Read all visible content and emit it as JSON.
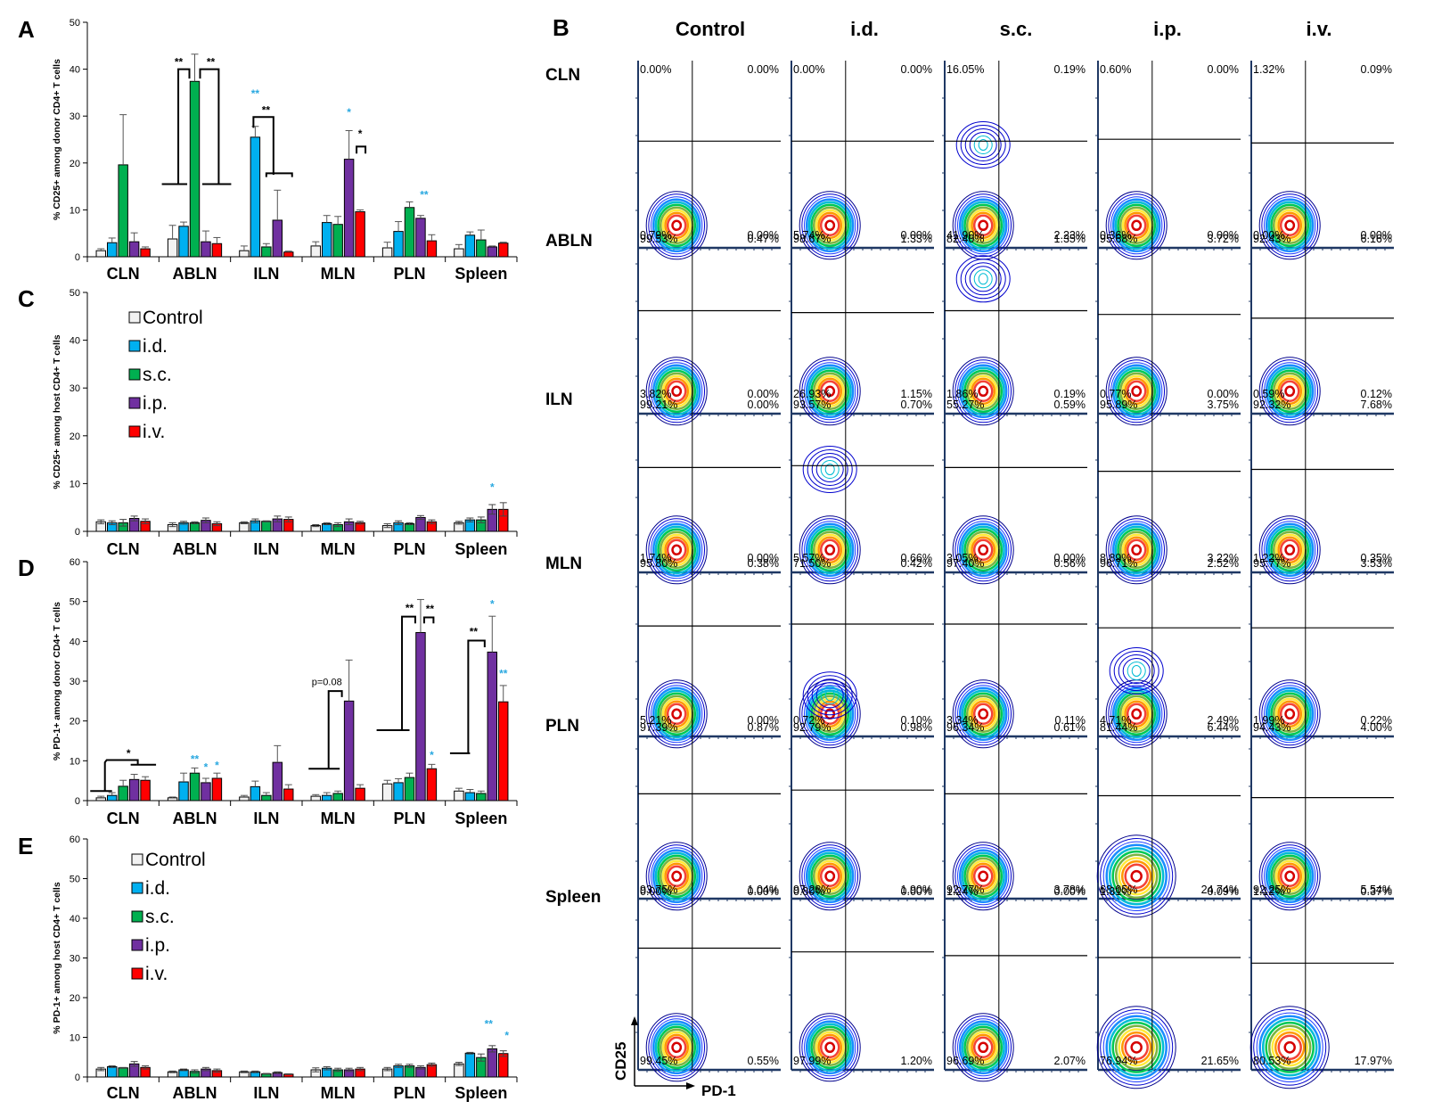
{
  "series_meta": [
    {
      "name": "Control",
      "color": "#f2f2f2"
    },
    {
      "name": "i.d.",
      "color": "#00b0f0"
    },
    {
      "name": "s.c.",
      "color": "#00b050"
    },
    {
      "name": "i.p.",
      "color": "#7030a0"
    },
    {
      "name": "i.v.",
      "color": "#ff0000"
    }
  ],
  "chart_data": [
    {
      "panel": "A",
      "type": "bar",
      "title": "",
      "ylabel": "% CD25+ among donor CD4+ T cells",
      "xlabel": "",
      "categories": [
        "CLN",
        "ABLN",
        "ILN",
        "MLN",
        "PLN",
        "Spleen"
      ],
      "ylim": [
        0,
        50
      ],
      "yticks": [
        0,
        10,
        20,
        30,
        40,
        50
      ],
      "legend": "none",
      "series": [
        {
          "name": "Control",
          "values": [
            1.3,
            3.8,
            1.3,
            2.3,
            1.9,
            1.7
          ],
          "errors": [
            0.4,
            2.9,
            1.0,
            0.9,
            1.2,
            0.9
          ]
        },
        {
          "name": "i.d.",
          "values": [
            3.0,
            6.5,
            25.5,
            7.3,
            5.4,
            4.6
          ],
          "errors": [
            1.0,
            0.9,
            2.3,
            1.5,
            2.1,
            0.7
          ]
        },
        {
          "name": "s.c.",
          "values": [
            19.6,
            37.4,
            2.1,
            6.9,
            10.5,
            3.6
          ],
          "errors": [
            10.7,
            5.8,
            0.7,
            1.7,
            1.2,
            2.1
          ]
        },
        {
          "name": "i.p.",
          "values": [
            3.2,
            3.2,
            7.8,
            20.8,
            8.2,
            2.1
          ],
          "errors": [
            1.9,
            2.3,
            6.4,
            6.1,
            0.6,
            0.2
          ]
        },
        {
          "name": "i.v.",
          "values": [
            1.7,
            2.8,
            1.0,
            9.6,
            3.4,
            2.9
          ],
          "errors": [
            0.4,
            1.3,
            0.2,
            0.4,
            1.3,
            0.2
          ]
        }
      ],
      "annotations": [
        {
          "text": "**",
          "color": "black",
          "category": "ABLN",
          "note": "Control/i.d./i.p./i.v. vs s.c. (left)"
        },
        {
          "text": "**",
          "color": "black",
          "category": "ABLN",
          "note": "s.c. vs others (right)"
        },
        {
          "text": "**",
          "color": "blue",
          "category": "ILN",
          "series": "i.d."
        },
        {
          "text": "**",
          "color": "black",
          "category": "ILN",
          "note": "i.d. vs s.c./i.p./i.v."
        },
        {
          "text": "*",
          "color": "blue",
          "category": "MLN",
          "series": "i.p."
        },
        {
          "text": "*",
          "color": "black",
          "category": "MLN",
          "note": "i.p. vs i.v."
        },
        {
          "text": "**",
          "color": "blue",
          "category": "PLN",
          "series": "i.p."
        }
      ]
    },
    {
      "panel": "C",
      "type": "bar",
      "title": "",
      "ylabel": "% CD25+ among host CD4+ T cells",
      "xlabel": "",
      "categories": [
        "CLN",
        "ABLN",
        "ILN",
        "MLN",
        "PLN",
        "Spleen"
      ],
      "ylim": [
        0,
        50
      ],
      "yticks": [
        0,
        10,
        20,
        30,
        40,
        50
      ],
      "legend": "top-left",
      "series": [
        {
          "name": "Control",
          "values": [
            2.0,
            1.4,
            1.8,
            1.2,
            1.2,
            1.8
          ],
          "errors": [
            0.4,
            0.4,
            0.2,
            0.2,
            0.4,
            0.3
          ]
        },
        {
          "name": "i.d.",
          "values": [
            1.8,
            1.8,
            2.2,
            1.6,
            1.8,
            2.4
          ],
          "errors": [
            0.4,
            0.3,
            0.4,
            0.2,
            0.4,
            0.4
          ]
        },
        {
          "name": "s.c.",
          "values": [
            1.8,
            1.8,
            2.1,
            1.4,
            1.6,
            2.4
          ],
          "errors": [
            0.7,
            0.2,
            0.1,
            0.4,
            0.2,
            0.6
          ]
        },
        {
          "name": "i.p.",
          "values": [
            2.7,
            2.3,
            2.6,
            2.0,
            2.9,
            4.6
          ],
          "errors": [
            0.5,
            0.5,
            0.6,
            0.6,
            0.4,
            1.0
          ]
        },
        {
          "name": "i.v.",
          "values": [
            2.1,
            1.6,
            2.5,
            1.8,
            2.0,
            4.6
          ],
          "errors": [
            0.5,
            0.4,
            0.5,
            0.3,
            0.4,
            1.4
          ]
        }
      ],
      "annotations": [
        {
          "text": "*",
          "color": "blue",
          "category": "Spleen",
          "series": "i.p."
        }
      ]
    },
    {
      "panel": "D",
      "type": "bar",
      "title": "",
      "ylabel": "% PD-1+ among donor CD4+ T cells",
      "xlabel": "",
      "categories": [
        "CLN",
        "ABLN",
        "ILN",
        "MLN",
        "PLN",
        "Spleen"
      ],
      "ylim": [
        0,
        60
      ],
      "yticks": [
        0,
        10,
        20,
        30,
        40,
        50,
        60
      ],
      "legend": "none",
      "series": [
        {
          "name": "Control",
          "values": [
            0.7,
            0.7,
            0.9,
            1.1,
            4.2,
            2.4
          ],
          "errors": [
            0.4,
            0.2,
            0.4,
            0.4,
            0.9,
            0.7
          ]
        },
        {
          "name": "i.d.",
          "values": [
            1.3,
            4.7,
            3.5,
            1.3,
            4.5,
            2.0
          ],
          "errors": [
            0.7,
            2.2,
            1.4,
            0.7,
            1.0,
            0.8
          ]
        },
        {
          "name": "s.c.",
          "values": [
            3.6,
            6.9,
            1.3,
            1.8,
            5.8,
            1.8
          ],
          "errors": [
            1.5,
            1.3,
            0.7,
            0.6,
            1.1,
            0.6
          ]
        },
        {
          "name": "i.p.",
          "values": [
            5.3,
            4.5,
            9.6,
            25.0,
            42.2,
            37.3
          ],
          "errors": [
            1.3,
            1.1,
            4.2,
            10.3,
            8.3,
            9.0
          ]
        },
        {
          "name": "i.v.",
          "values": [
            5.1,
            5.6,
            2.9,
            3.1,
            8.0,
            24.8
          ],
          "errors": [
            0.9,
            1.3,
            1.1,
            0.9,
            1.1,
            4.1
          ]
        }
      ],
      "annotations": [
        {
          "text": "*",
          "color": "black",
          "category": "CLN",
          "note": "Control/i.d. vs i.p./i.v."
        },
        {
          "text": "**",
          "color": "blue",
          "category": "ABLN",
          "series": "s.c."
        },
        {
          "text": "*",
          "color": "blue",
          "category": "ABLN",
          "series": "i.p."
        },
        {
          "text": "*",
          "color": "blue",
          "category": "ABLN",
          "series": "i.v."
        },
        {
          "text": "p=0.08",
          "color": "black",
          "category": "MLN",
          "note": "others vs i.p."
        },
        {
          "text": "**",
          "color": "black",
          "category": "PLN",
          "note": "others vs i.p."
        },
        {
          "text": "**",
          "color": "black",
          "category": "PLN",
          "note": "i.p. vs i.v."
        },
        {
          "text": "*",
          "color": "blue",
          "category": "PLN",
          "series": "i.v."
        },
        {
          "text": "**",
          "color": "black",
          "category": "Spleen",
          "note": "others vs i.p."
        },
        {
          "text": "*",
          "color": "blue",
          "category": "Spleen",
          "series": "i.p."
        },
        {
          "text": "**",
          "color": "blue",
          "category": "Spleen",
          "series": "i.v."
        }
      ]
    },
    {
      "panel": "E",
      "type": "bar",
      "title": "",
      "ylabel": "% PD-1+ among host CD4+ T cells",
      "xlabel": "",
      "categories": [
        "CLN",
        "ABLN",
        "ILN",
        "MLN",
        "PLN",
        "Spleen"
      ],
      "ylim": [
        0,
        60
      ],
      "yticks": [
        0,
        10,
        20,
        30,
        40,
        50,
        60
      ],
      "legend": "top-left",
      "series": [
        {
          "name": "Control",
          "values": [
            2.0,
            1.3,
            1.3,
            1.8,
            2.0,
            3.3
          ],
          "errors": [
            0.4,
            0.2,
            0.2,
            0.5,
            0.4,
            0.4
          ]
        },
        {
          "name": "i.d.",
          "values": [
            2.6,
            1.8,
            1.3,
            2.2,
            2.8,
            6.0
          ],
          "errors": [
            0.2,
            0.2,
            0.2,
            0.4,
            0.4,
            0.2
          ]
        },
        {
          "name": "s.c.",
          "values": [
            2.3,
            1.4,
            0.8,
            1.8,
            2.8,
            4.9
          ],
          "errors": [
            0.1,
            0.4,
            0.1,
            0.4,
            0.4,
            0.9
          ]
        },
        {
          "name": "i.p.",
          "values": [
            3.3,
            2.0,
            1.1,
            1.8,
            2.4,
            7.1
          ],
          "errors": [
            0.6,
            0.4,
            0.2,
            0.4,
            0.4,
            0.8
          ]
        },
        {
          "name": "i.v.",
          "values": [
            2.4,
            1.6,
            0.7,
            2.0,
            3.1,
            5.9
          ],
          "errors": [
            0.4,
            0.4,
            0.1,
            0.4,
            0.4,
            0.7
          ]
        }
      ],
      "annotations": [
        {
          "text": "**",
          "color": "blue",
          "category": "Spleen",
          "series": "i.p."
        },
        {
          "text": "*",
          "color": "blue",
          "category": "Spleen",
          "series": "i.v."
        }
      ]
    }
  ],
  "panels": {
    "A": {
      "letter": "A"
    },
    "B": {
      "letter": "B"
    },
    "C": {
      "letter": "C"
    },
    "D": {
      "letter": "D"
    },
    "E": {
      "letter": "E"
    }
  },
  "flow": {
    "columns": [
      "Control",
      "i.d.",
      "s.c.",
      "i.p.",
      "i.v."
    ],
    "rows": [
      {
        "tissue": "CLN",
        "plots": [
          {
            "ul": "0.00%",
            "ur": "0.00%",
            "ll": "99.53%",
            "lr": "0.47%"
          },
          {
            "ul": "0.00%",
            "ur": "0.00%",
            "ll": "98.67%",
            "lr": "1.33%"
          },
          {
            "ul": "16.05%",
            "ur": "0.19%",
            "ll": "82.40%",
            "lr": "1.35%"
          },
          {
            "ul": "0.60%",
            "ur": "0.00%",
            "ll": "95.68%",
            "lr": "3.72%"
          },
          {
            "ul": "1.32%",
            "ur": "0.09%",
            "ll": "92.43%",
            "lr": "6.16%"
          }
        ]
      },
      {
        "tissue": "ABLN",
        "plots": [
          {
            "ul": "0.79%",
            "ur": "0.00%",
            "ll": "99.21%",
            "lr": "0.00%"
          },
          {
            "ul": "5.74%",
            "ur": "0.00%",
            "ll": "93.57%",
            "lr": "0.70%"
          },
          {
            "ul": "41.90%",
            "ur": "2.23%",
            "ll": "55.27%",
            "lr": "0.59%"
          },
          {
            "ul": "0.36%",
            "ur": "0.00%",
            "ll": "95.89%",
            "lr": "3.75%"
          },
          {
            "ul": "0.00%",
            "ur": "0.00%",
            "ll": "92.32%",
            "lr": "7.68%"
          }
        ]
      },
      {
        "tissue": "ILN",
        "plots": [
          {
            "ul": "3.82%",
            "ur": "0.00%",
            "ll": "95.80%",
            "lr": "0.38%"
          },
          {
            "ul": "26.93%",
            "ur": "1.15%",
            "ll": "71.50%",
            "lr": "0.42%"
          },
          {
            "ul": "1.86%",
            "ur": "0.19%",
            "ll": "97.40%",
            "lr": "0.56%"
          },
          {
            "ul": "0.77%",
            "ur": "0.00%",
            "ll": "96.71%",
            "lr": "2.52%"
          },
          {
            "ul": "0.59%",
            "ur": "0.12%",
            "ll": "95.77%",
            "lr": "3.53%"
          }
        ]
      },
      {
        "tissue": "MLN",
        "plots": [
          {
            "ul": "1.74%",
            "ur": "0.00%",
            "ll": "97.39%",
            "lr": "0.87%"
          },
          {
            "ul": "5.57%",
            "ur": "0.66%",
            "ll": "92.79%",
            "lr": "0.98%"
          },
          {
            "ul": "3.05%",
            "ur": "0.00%",
            "ll": "96.34%",
            "lr": "0.61%"
          },
          {
            "ul": "8.89%",
            "ur": "3.22%",
            "ll": "81.44%",
            "lr": "6.44%"
          },
          {
            "ul": "1.22%",
            "ur": "0.35%",
            "ll": "94.43%",
            "lr": "4.00%"
          }
        ]
      },
      {
        "tissue": "PLN",
        "plots": [
          {
            "ul": "5.21%",
            "ur": "0.00%",
            "ll": "93.75%",
            "lr": "1.04%"
          },
          {
            "ul": "0.72%",
            "ur": "0.10%",
            "ll": "97.28%",
            "lr": "1.90%"
          },
          {
            "ul": "3.34%",
            "ur": "0.11%",
            "ll": "92.77%",
            "lr": "3.78%"
          },
          {
            "ul": "4.71%",
            "ur": "2.49%",
            "ll": "68.05%",
            "lr": "24.74%"
          },
          {
            "ul": "1.99%",
            "ur": "0.22%",
            "ll": "92.25%",
            "lr": "5.54%"
          }
        ]
      },
      {
        "tissue": "Spleen",
        "plots": [
          {
            "ul": "0.00%",
            "ur": "0.00%",
            "ll": "99.45%",
            "lr": "0.55%"
          },
          {
            "ul": "0.80%",
            "ur": "0.00%",
            "ll": "97.99%",
            "lr": "1.20%"
          },
          {
            "ul": "1.24%",
            "ur": "0.00%",
            "ll": "96.69%",
            "lr": "2.07%"
          },
          {
            "ul": "1.31%",
            "ur": "0.09%",
            "ll": "76.94%",
            "lr": "21.65%"
          },
          {
            "ul": "1.12%",
            "ur": "0.37%",
            "ll": "80.53%",
            "lr": "17.97%"
          }
        ]
      }
    ],
    "y_axis_label": "CD25",
    "x_axis_label": "PD-1"
  }
}
